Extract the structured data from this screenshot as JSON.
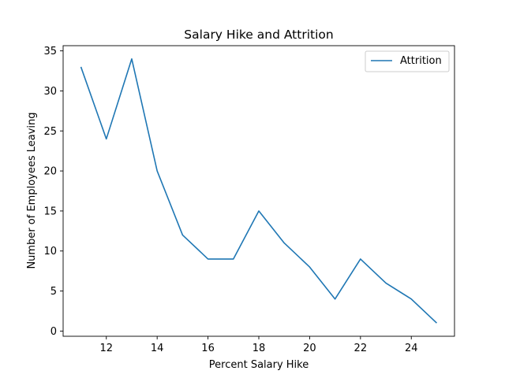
{
  "chart_data": {
    "type": "line",
    "title": "Salary Hike and Attrition",
    "xlabel": "Percent Salary Hike",
    "ylabel": "Number of Employees Leaving",
    "xlim": [
      10.3,
      25.7
    ],
    "ylim": [
      -0.65,
      35.65
    ],
    "xticks": [
      12,
      14,
      16,
      18,
      20,
      22,
      24
    ],
    "yticks": [
      0,
      5,
      10,
      15,
      20,
      25,
      30,
      35
    ],
    "grid": false,
    "legend_position": "upper right",
    "series": [
      {
        "name": "Attrition",
        "color": "#1f77b4",
        "x": [
          11,
          12,
          13,
          14,
          15,
          16,
          17,
          18,
          19,
          20,
          21,
          22,
          23,
          24,
          25
        ],
        "y": [
          33,
          24,
          34,
          20,
          12,
          9,
          9,
          15,
          11,
          8,
          4,
          9,
          6,
          4,
          1
        ]
      }
    ]
  }
}
